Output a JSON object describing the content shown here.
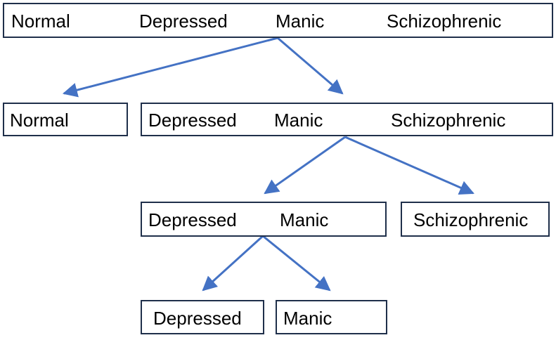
{
  "tree": {
    "root": {
      "labels": [
        "Normal",
        "Depressed",
        "Manic",
        "Schizophrenic"
      ]
    },
    "level1_left": {
      "labels": [
        "Normal"
      ]
    },
    "level1_right": {
      "labels": [
        "Depressed",
        "Manic",
        "Schizophrenic"
      ]
    },
    "level2_left": {
      "labels": [
        "Depressed",
        "Manic"
      ]
    },
    "level2_right": {
      "labels": [
        "Schizophrenic"
      ]
    },
    "level3_left": {
      "labels": [
        "Depressed"
      ]
    },
    "level3_right": {
      "labels": [
        "Manic"
      ]
    }
  },
  "colors": {
    "arrow": "#4472c4",
    "box_border": "#1f2f4a",
    "text": "#000000"
  }
}
